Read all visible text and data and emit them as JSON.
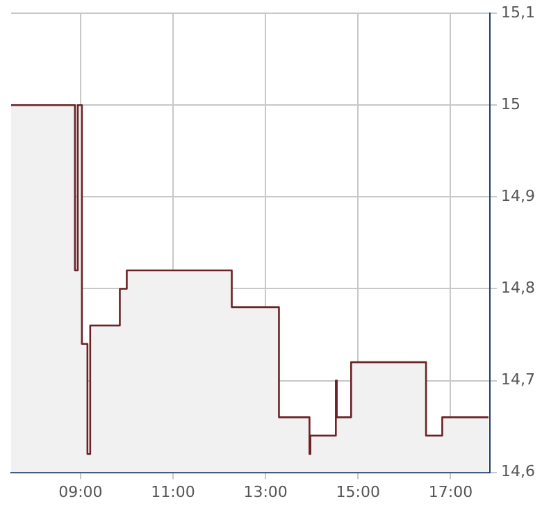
{
  "chart_data": {
    "type": "area",
    "x": [
      7.5,
      8.88,
      8.88,
      8.94,
      8.94,
      9.03,
      9.03,
      9.15,
      9.15,
      9.21,
      9.21,
      9.85,
      9.85,
      10.0,
      10.0,
      12.27,
      12.27,
      13.29,
      13.29,
      13.95,
      13.95,
      13.97,
      13.97,
      14.52,
      14.52,
      14.54,
      14.54,
      14.85,
      14.85,
      16.47,
      16.47,
      16.82,
      16.82,
      17.82
    ],
    "series": [
      {
        "color": "#6b2226",
        "values": [
          15.0,
          15.0,
          14.82,
          14.82,
          15.0,
          15.0,
          14.74,
          14.74,
          14.62,
          14.62,
          14.76,
          14.76,
          14.8,
          14.8,
          14.82,
          14.82,
          14.78,
          14.78,
          14.66,
          14.66,
          14.62,
          14.62,
          14.64,
          14.64,
          14.7,
          14.7,
          14.66,
          14.66,
          14.72,
          14.72,
          14.64,
          14.64,
          14.66,
          14.66
        ]
      }
    ],
    "xlim": [
      7.5,
      17.85
    ],
    "xticks": [
      {
        "value": 9,
        "label": "09:00"
      },
      {
        "value": 11,
        "label": "11:00"
      },
      {
        "value": 13,
        "label": "13:00"
      },
      {
        "value": 15,
        "label": "15:00"
      },
      {
        "value": 17,
        "label": "17:00"
      }
    ],
    "ylim": [
      14.6,
      15.1
    ],
    "yticks": [
      {
        "value": 14.6,
        "label": "14,6"
      },
      {
        "value": 14.7,
        "label": "14,7"
      },
      {
        "value": 14.8,
        "label": "14,8"
      },
      {
        "value": 14.9,
        "label": "14,9"
      },
      {
        "value": 15.0,
        "label": "15"
      },
      {
        "value": 15.1,
        "label": "15,1"
      }
    ],
    "grid": true,
    "legend": false
  }
}
